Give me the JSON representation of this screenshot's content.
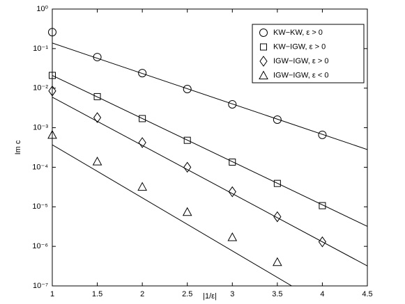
{
  "chart_data": {
    "type": "scatter",
    "xlabel": "|1/ε|",
    "ylabel": "Im c",
    "log_y": true,
    "x": [
      1,
      1.5,
      2,
      2.5,
      3,
      3.5,
      4
    ],
    "xlim": [
      1,
      4.5
    ],
    "xticks": [
      1,
      1.5,
      2,
      2.5,
      3,
      3.5,
      4,
      4.5
    ],
    "ylim": [
      1e-07,
      1
    ],
    "yticks": [
      {
        "value": 1e-07,
        "label": "10⁻⁷"
      },
      {
        "value": 1e-06,
        "label": "10⁻⁶"
      },
      {
        "value": 1e-05,
        "label": "10⁻⁵"
      },
      {
        "value": 0.0001,
        "label": "10⁻⁴"
      },
      {
        "value": 0.001,
        "label": "10⁻³"
      },
      {
        "value": 0.01,
        "label": "10⁻²"
      },
      {
        "value": 0.1,
        "label": "10⁻¹"
      },
      {
        "value": 1,
        "label": "10⁰"
      }
    ],
    "legend": "upper right",
    "color": "#000000",
    "series": [
      {
        "name": "KW−KW, ε > 0",
        "marker": "circle",
        "values": [
          0.26,
          0.061,
          0.024,
          0.0095,
          0.0039,
          0.0016,
          0.00066
        ]
      },
      {
        "name": "KW−IGW, ε > 0",
        "marker": "square",
        "values": [
          0.021,
          0.0061,
          0.0017,
          0.00048,
          0.000135,
          3.9e-05,
          1.07e-05
        ]
      },
      {
        "name": "IGW−IGW, ε > 0",
        "marker": "diamond",
        "values": [
          0.0085,
          0.0018,
          0.00042,
          0.0001,
          2.4e-05,
          5.6e-06,
          1.3e-06
        ]
      },
      {
        "name": "IGW−IGW, ε < 0",
        "marker": "triangle",
        "values": [
          0.00066,
          0.00014,
          3.2e-05,
          7.4e-06,
          1.7e-06,
          4e-07,
          null
        ]
      }
    ],
    "fits": [
      {
        "x": [
          1,
          4.5
        ],
        "values": [
          0.138,
          0.00028
        ]
      },
      {
        "x": [
          1,
          4.5
        ],
        "values": [
          0.021,
          3.2e-06
        ]
      },
      {
        "x": [
          1,
          4.5
        ],
        "values": [
          0.0059,
          3.2e-07
        ]
      },
      {
        "x": [
          1,
          3.66
        ],
        "values": [
          0.00037,
          1e-07
        ]
      }
    ]
  }
}
